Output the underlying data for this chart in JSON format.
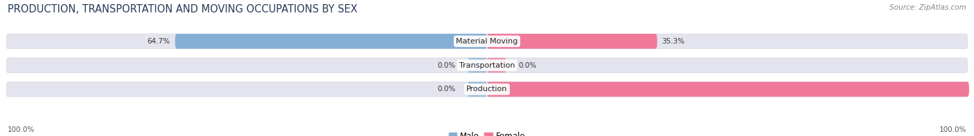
{
  "title": "PRODUCTION, TRANSPORTATION AND MOVING OCCUPATIONS BY SEX",
  "source": "Source: ZipAtlas.com",
  "categories": [
    "Material Moving",
    "Transportation",
    "Production"
  ],
  "male_values": [
    64.7,
    0.0,
    0.0
  ],
  "female_values": [
    35.3,
    0.0,
    100.0
  ],
  "male_color": "#85aed4",
  "female_color": "#f07898",
  "bg_color": "#ffffff",
  "bar_bg_color": "#e4e4ee",
  "bar_bg_border": "#d8d8e8",
  "bar_height": 0.62,
  "title_fontsize": 10.5,
  "source_fontsize": 7.5,
  "label_fontsize": 8,
  "value_fontsize": 7.5,
  "legend_fontsize": 8.5,
  "axis_label_left": "100.0%",
  "axis_label_right": "100.0%"
}
